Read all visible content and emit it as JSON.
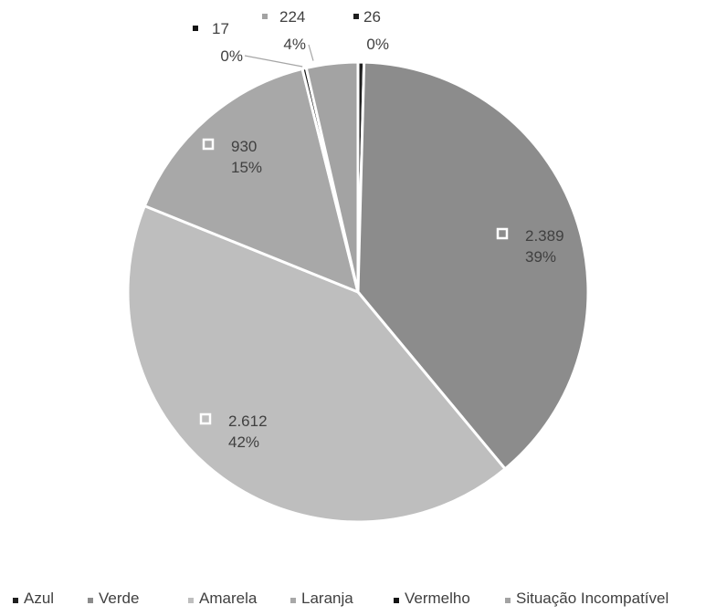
{
  "chart_data": {
    "type": "pie",
    "title": "",
    "categories": [
      "Azul",
      "Verde",
      "Amarela",
      "Laranja",
      "Vermelho",
      "Situação Incompatível"
    ],
    "values": [
      26,
      2389,
      2612,
      930,
      17,
      224
    ],
    "value_labels": [
      "26",
      "2.389",
      "2.612",
      "930",
      "17",
      "224"
    ],
    "percent_labels": [
      "0%",
      "39%",
      "42%",
      "15%",
      "0%",
      "4%"
    ],
    "colors": [
      "#1f1f1f",
      "#8c8c8c",
      "#bebebe",
      "#a8a8a8",
      "#141414",
      "#a3a3a3"
    ],
    "start_angle_deg": 0,
    "direction": "clockwise",
    "legend": {
      "position": "bottom",
      "entries": [
        "Azul",
        "Verde",
        "Amarela",
        "Laranja",
        "Vermelho",
        "Situação Incompatível"
      ]
    }
  }
}
